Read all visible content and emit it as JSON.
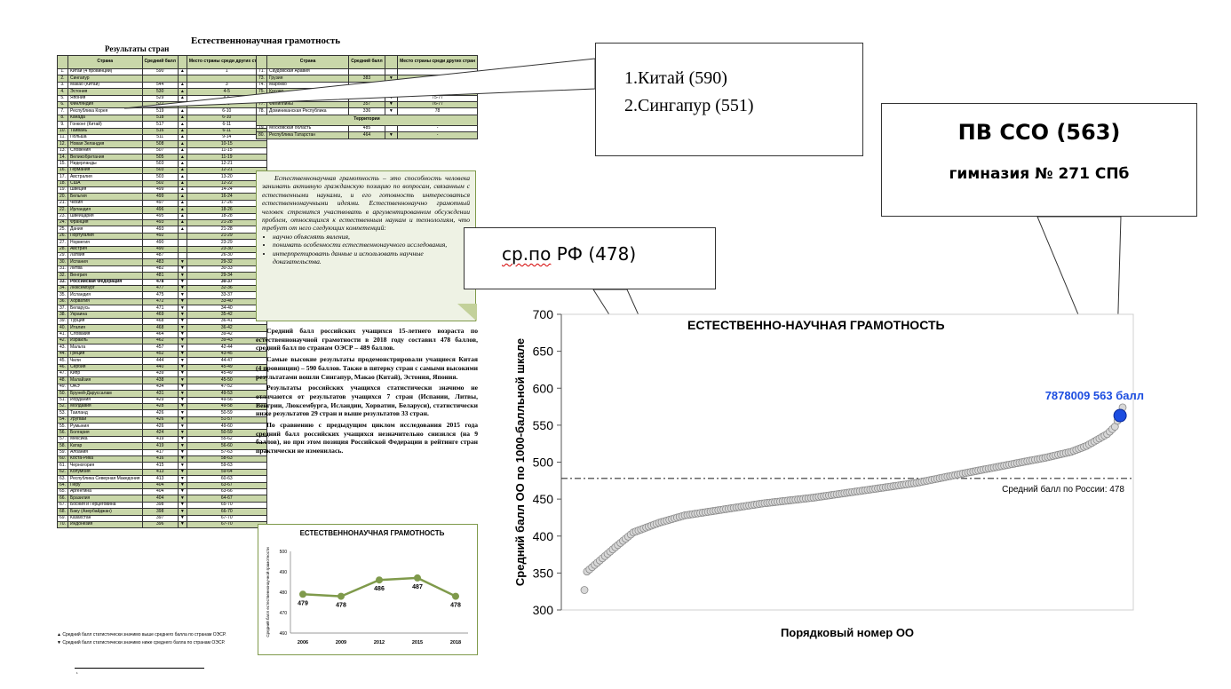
{
  "report": {
    "title": "Естественнонаучная грамотность",
    "table_caption": "Результаты стран",
    "left_table": {
      "headers": [
        "",
        "Страна",
        "Средний балл",
        "",
        "Место страны среди других стран"
      ],
      "rows": [
        [
          "1.",
          "Китай (4 провинции)",
          "590",
          "▲",
          "1"
        ],
        [
          "2.",
          "Сингапур",
          "",
          "",
          ""
        ],
        [
          "3.",
          "Макао (Китай)",
          "544",
          "▲",
          "3"
        ],
        [
          "4.",
          "Эстония",
          "530",
          "▲",
          "4-5"
        ],
        [
          "5.",
          "Япония",
          "529",
          "▲",
          "4-6"
        ],
        [
          "6.",
          "Финляндия",
          "522",
          "▲",
          "5-9"
        ],
        [
          "7.",
          "Республика Корея",
          "519",
          "▲",
          "6-10"
        ],
        [
          "8.",
          "Канада",
          "518",
          "▲",
          "6-10"
        ],
        [
          "9.",
          "Гонконг (Китай)",
          "517",
          "▲",
          "6-11"
        ],
        [
          "10.",
          "Тайвань",
          "516",
          "▲",
          "6-11"
        ],
        [
          "11.",
          "Польша",
          "511",
          "▲",
          "9-14"
        ],
        [
          "12.",
          "Новая Зеландия",
          "508",
          "▲",
          "10-15"
        ],
        [
          "13.",
          "Словения",
          "507",
          "▲",
          "11-15"
        ],
        [
          "14.",
          "Великобритания",
          "505",
          "▲",
          "11-19"
        ],
        [
          "15.",
          "Нидерланды",
          "503",
          "▲",
          "12-21"
        ],
        [
          "16.",
          "Германия",
          "503",
          "▲",
          "12-21"
        ],
        [
          "17.",
          "Австралия",
          "503",
          "▲",
          "13-20"
        ],
        [
          "18.",
          "США",
          "502",
          "▲",
          "12-22"
        ],
        [
          "19.",
          "Швеция",
          "499",
          "▲",
          "14-24"
        ],
        [
          "20.",
          "Бельгия",
          "499",
          "▲",
          "16-24"
        ],
        [
          "21.",
          "Чехия",
          "497",
          "▲",
          "17-26"
        ],
        [
          "22.",
          "Ирландия",
          "496",
          "▲",
          "18-26"
        ],
        [
          "23.",
          "Швейцария",
          "495",
          "▲",
          "18-28"
        ],
        [
          "24.",
          "Франция",
          "493",
          "▲",
          "21-28"
        ],
        [
          "25.",
          "Дания",
          "493",
          "▲",
          "21-28"
        ],
        [
          "26.",
          "Португалия",
          "492",
          "",
          "21-29"
        ],
        [
          "27.",
          "Норвегия",
          "490",
          "",
          "23-29"
        ],
        [
          "28.",
          "Австрия",
          "490",
          "",
          "23-30"
        ],
        [
          "29.",
          "Латвия",
          "487",
          "",
          "26-30"
        ],
        [
          "30.",
          "Испания",
          "483",
          "▼",
          "29-32"
        ],
        [
          "31.",
          "Литва",
          "482",
          "▼",
          "30-33"
        ],
        [
          "32.",
          "Венгрия",
          "481",
          "▼",
          "29-34"
        ],
        [
          "33.",
          "Российская Федерация",
          "478",
          "▼",
          "30-37"
        ],
        [
          "34.",
          "Люксембург",
          "477",
          "▼",
          "32-36"
        ],
        [
          "35.",
          "Исландия",
          "475",
          "▼",
          "33-37"
        ],
        [
          "36.",
          "Хорватия",
          "472",
          "▼",
          "33-40"
        ],
        [
          "37.",
          "Беларусь",
          "471",
          "▼",
          "34-40"
        ],
        [
          "38.",
          "Украина",
          "469",
          "▼",
          "35-42"
        ],
        [
          "39.",
          "Турция",
          "468",
          "▼",
          "36-41"
        ],
        [
          "40.",
          "Италия",
          "468",
          "▼",
          "36-42"
        ],
        [
          "41.",
          "Словакия",
          "464",
          "▼",
          "39-42"
        ],
        [
          "42.",
          "Израиль",
          "462",
          "▼",
          "39-43"
        ],
        [
          "43.",
          "Мальта",
          "457",
          "▼",
          "42-44"
        ],
        [
          "44.",
          "Греция",
          "452",
          "▼",
          "43-45"
        ],
        [
          "45.",
          "Чили",
          "444",
          "▼",
          "44-47"
        ],
        [
          "46.",
          "Сербия",
          "440",
          "▼",
          "45-49"
        ],
        [
          "47.",
          "Кипр",
          "439",
          "▼",
          "45-49"
        ],
        [
          "48.",
          "Малайзия",
          "438",
          "▼",
          "45-50"
        ],
        [
          "49.",
          "ОАЭ",
          "434",
          "▼",
          "47-52"
        ],
        [
          "50.",
          "Бруней-Даруссалам",
          "431",
          "▼",
          "49-53"
        ],
        [
          "51.",
          "Иордания",
          "429",
          "▼",
          "49-56"
        ],
        [
          "52.",
          "Молдавия",
          "428",
          "▼",
          "49-58"
        ],
        [
          "53.",
          "Таиланд",
          "426",
          "▼",
          "50-59"
        ],
        [
          "54.",
          "Уругвай",
          "426",
          "▼",
          "51-57"
        ],
        [
          "55.",
          "Румыния",
          "426",
          "▼",
          "49-60"
        ],
        [
          "56.",
          "Болгария",
          "424",
          "▼",
          "50-59"
        ],
        [
          "57.",
          "Мексика",
          "419",
          "▼",
          "55-62"
        ],
        [
          "58.",
          "Катар",
          "419",
          "▼",
          "56-60"
        ],
        [
          "59.",
          "Албания",
          "417",
          "▼",
          "57-63"
        ],
        [
          "60.",
          "Коста-Рика",
          "416",
          "▼",
          "58-63"
        ],
        [
          "61.",
          "Черногория",
          "415",
          "▼",
          "59-63"
        ],
        [
          "62.",
          "Колумбия",
          "413",
          "▼",
          "59-64"
        ],
        [
          "63.",
          "Республика Северная Македония",
          "413",
          "▼",
          "60-63"
        ],
        [
          "64.",
          "Перу",
          "404",
          "▼",
          "63-67"
        ],
        [
          "65.",
          "Аргентина",
          "404",
          "▼",
          "63-66"
        ],
        [
          "66.",
          "Бразилия",
          "404",
          "▼",
          "64-67"
        ],
        [
          "67.",
          "Босния и Герцеговина",
          "398",
          "▼",
          "65-70"
        ],
        [
          "68.",
          "Баку (Азербайджан)",
          "398",
          "▼",
          "66-70"
        ],
        [
          "69.",
          "Казахстан",
          "397",
          "▼",
          "67-70"
        ],
        [
          "70.",
          "Индонезия",
          "396",
          "▼",
          "67-70"
        ]
      ]
    },
    "right_table": {
      "headers": [
        "",
        "Страна",
        "Средний балл",
        "",
        "Место страны среди других стран"
      ],
      "rows": [
        [
          "71.",
          "Саудовская Аравия",
          "",
          "",
          ""
        ],
        [
          "73.",
          "Грузия",
          "383",
          "▼",
          "71-74"
        ],
        [
          "74.",
          "Марокко",
          "377",
          "▼",
          "73-74"
        ],
        [
          "75.",
          "Косово",
          "365",
          "▼",
          "75-76"
        ],
        [
          "76.",
          "Панама",
          "365",
          "▼",
          "75-77"
        ],
        [
          "77.",
          "Филиппины",
          "357",
          "▼",
          "76-77"
        ],
        [
          "78.",
          "Доминиканская Республика",
          "336",
          "▼",
          "78"
        ]
      ],
      "territories_header": "Территории",
      "territories": [
        [
          "79.",
          "Московская область",
          "485",
          "",
          "-"
        ],
        [
          "80.",
          "Республика Татарстан",
          "464",
          "▼",
          "-"
        ]
      ]
    },
    "legend_notes": [
      "▲ Средний балл статистически значимо выше среднего балла по странам ОЭСР.",
      "▼ Средний балл статистически значимо ниже среднего балла по странам ОЭСР."
    ],
    "quote": {
      "paragraph": "Естественнонаучная грамотность – это способность человека занимать активную гражданскую позицию по вопросам, связанным с естественными науками, и его готовность интересоваться естественнонаучными идеями. Естественнонаучно грамотный человек стремится участвовать в аргументированном обсуждении проблем, относящихся к естественным наукам и технологиям, что требует от него следующих компетенций:",
      "bullets": [
        "научно объяснять явления,",
        "понимать особенности естественнонаучного исследования,",
        "интерпретировать данные и использовать научные доказательства."
      ]
    },
    "body_paragraphs": [
      "Средний балл российских учащихся 15-летнего возраста по естественнонаучной грамотности в 2018 году составил 478 баллов, средний балл по странам ОЭСР – 489 баллов.",
      "Самые высокие результаты продемонстрировали учащиеся Китая (4 провинции) – 590 баллов. Также в пятерку стран с самыми высокими результатами вошли Сингапур, Макао (Китай), Эстония, Япония.",
      "Результаты российских учащихся статистически значимо не отличаются от результатов учащихся 7 стран (Испании, Литвы, Венгрии, Люксембурга, Исландии, Хорватии, Беларуси), статистически ниже результатов 29 стран и выше результатов 33 стран.",
      "По сравнению с предыдущим циклом исследования 2015 года средний балл российских учащихся незначительно снизился (на 9 баллов), но при этом позиция Российской Федерации в рейтинге стран практически не изменилась."
    ],
    "footnote_mark": "¹"
  },
  "callouts": {
    "top_countries": [
      "1.Китай (590)",
      "2.Сингапур (551)"
    ],
    "pv_line1": "ПВ ССО (563)",
    "pv_line2": "гимназия № 271 СПб",
    "avg_prefix": "ср.по",
    "avg_rest": " РФ (478)"
  },
  "colors": {
    "accent_green": "#7f9a4b",
    "table_green": "#c9d7a9",
    "highlight_blue": "#1c4de0",
    "dot_gray": "#9a9a9a"
  },
  "chart_data": [
    {
      "type": "line",
      "title": "ЕСТЕСТВЕННОНАУЧНАЯ ГРАМОТНОСТЬ",
      "ylabel": "Средний балл естественнонаучной грамотности",
      "x": [
        "2006",
        "2009",
        "2012",
        "2015",
        "2018"
      ],
      "series": [
        {
          "values": [
            479,
            478,
            486,
            487,
            478
          ]
        }
      ],
      "ylim": [
        460,
        500
      ],
      "yticks": [
        460,
        470,
        480,
        490,
        500
      ],
      "grid": false
    },
    {
      "type": "scatter",
      "title": "ЕСТЕСТВЕННО-НАУЧНАЯ ГРАМОТНОСТЬ",
      "xlabel": "Порядковый номер ОО",
      "ylabel": "Средний балл ОО по 1000-балльной шкале",
      "ylim": [
        300,
        700
      ],
      "yticks": [
        300,
        350,
        400,
        450,
        500,
        550,
        600,
        650,
        700
      ],
      "grid": false,
      "n_points": 210,
      "sorted_ascending": true,
      "curve_keypoints": [
        [
          1,
          327
        ],
        [
          2,
          352
        ],
        [
          4,
          358
        ],
        [
          8,
          370
        ],
        [
          13,
          385
        ],
        [
          20,
          405
        ],
        [
          30,
          418
        ],
        [
          40,
          428
        ],
        [
          55,
          436
        ],
        [
          70,
          444
        ],
        [
          90,
          452
        ],
        [
          110,
          462
        ],
        [
          130,
          472
        ],
        [
          150,
          486
        ],
        [
          165,
          496
        ],
        [
          180,
          506
        ],
        [
          190,
          514
        ],
        [
          196,
          522
        ],
        [
          200,
          530
        ],
        [
          204,
          538
        ],
        [
          207,
          548
        ],
        [
          208,
          556
        ],
        [
          210,
          574
        ]
      ],
      "reference_line": {
        "value": 478,
        "label": "Средний балл по России: 478"
      },
      "highlight_point": {
        "x": 209,
        "y": 563,
        "label": "7878009 563 балл"
      }
    }
  ]
}
